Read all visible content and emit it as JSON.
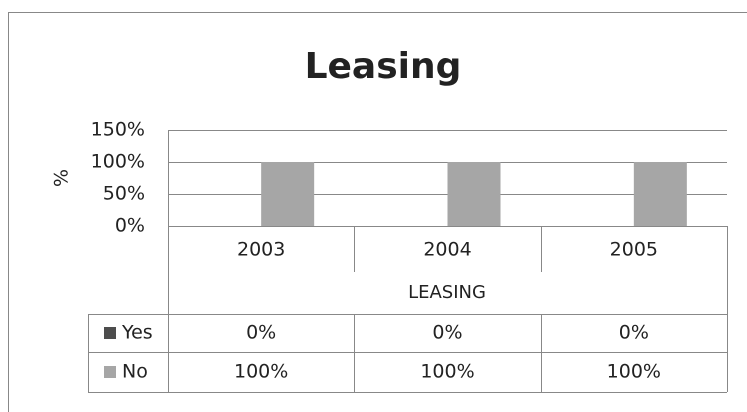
{
  "chart_data": {
    "type": "bar",
    "title": "Leasing",
    "y_label": "%",
    "x_label": "LEASING",
    "categories": [
      "2003",
      "2004",
      "2005"
    ],
    "series": [
      {
        "name": "Yes",
        "color": "#4d4d4d",
        "values": [
          0,
          0,
          0
        ],
        "value_labels": [
          "0%",
          "0%",
          "0%"
        ]
      },
      {
        "name": "No",
        "color": "#a6a6a6",
        "values": [
          100,
          100,
          100
        ],
        "value_labels": [
          "100%",
          "100%",
          "100%"
        ]
      }
    ],
    "ylim": [
      0,
      150
    ],
    "yticks": [
      {
        "value": 0,
        "label": "0%"
      },
      {
        "value": 50,
        "label": "50%"
      },
      {
        "value": 100,
        "label": "100%"
      },
      {
        "value": 150,
        "label": "150%"
      }
    ],
    "grid": true
  }
}
